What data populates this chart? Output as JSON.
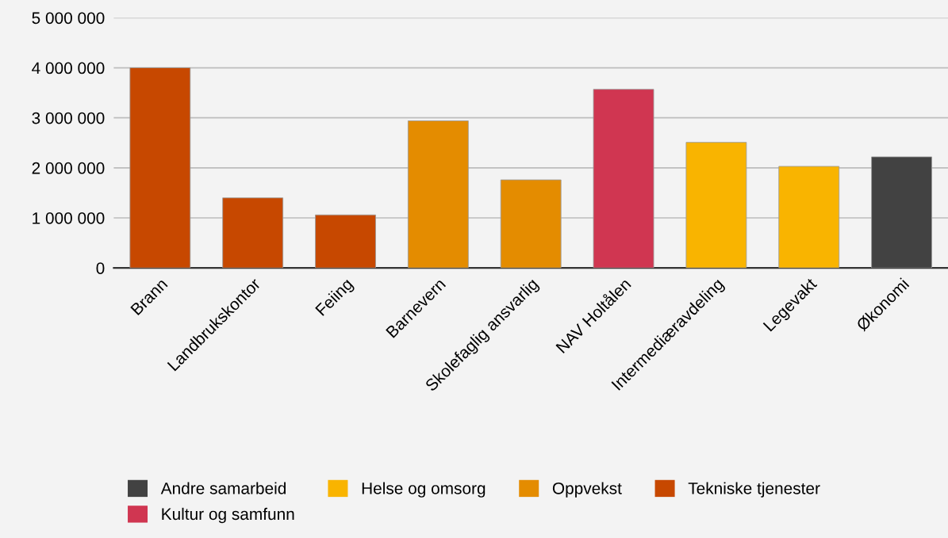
{
  "chart_data": {
    "type": "bar",
    "categories": [
      "Brann",
      "Landbrukskontor",
      "Feiing",
      "Barnevern",
      "Skolefaglig ansvarlig",
      "NAV Holtålen",
      "Intermediæravdeling",
      "Legevakt",
      "Økonomi"
    ],
    "series": [
      {
        "name": "Andre samarbeid",
        "color": "#424242",
        "values": [
          null,
          null,
          null,
          null,
          null,
          null,
          null,
          null,
          2220000
        ]
      },
      {
        "name": "Kultur og samfunn",
        "color": "#d03651",
        "values": [
          null,
          null,
          null,
          null,
          null,
          3570000,
          null,
          null,
          null
        ]
      },
      {
        "name": "Helse og omsorg",
        "color": "#f9b400",
        "values": [
          null,
          null,
          null,
          null,
          null,
          null,
          2510000,
          2030000,
          null
        ]
      },
      {
        "name": "Oppvekst",
        "color": "#e48c00",
        "values": [
          null,
          null,
          null,
          2940000,
          1760000,
          null,
          null,
          null,
          null
        ]
      },
      {
        "name": "Tekniske tjenester",
        "color": "#c74800",
        "values": [
          4000000,
          1400000,
          1060000,
          null,
          null,
          null,
          null,
          null,
          null
        ]
      }
    ],
    "ylim": [
      0,
      5000000
    ],
    "yticks": [
      0,
      {
        "value": 1000000,
        "label": "1 000 000"
      },
      {
        "value": 2000000,
        "label": "2 000 000"
      },
      {
        "value": 3000000,
        "label": "3 000 000"
      },
      {
        "value": 4000000,
        "label": "4 000 000"
      },
      {
        "value": 5000000,
        "label": "5 000 000"
      }
    ],
    "grid": "y",
    "legend": "bottom"
  }
}
